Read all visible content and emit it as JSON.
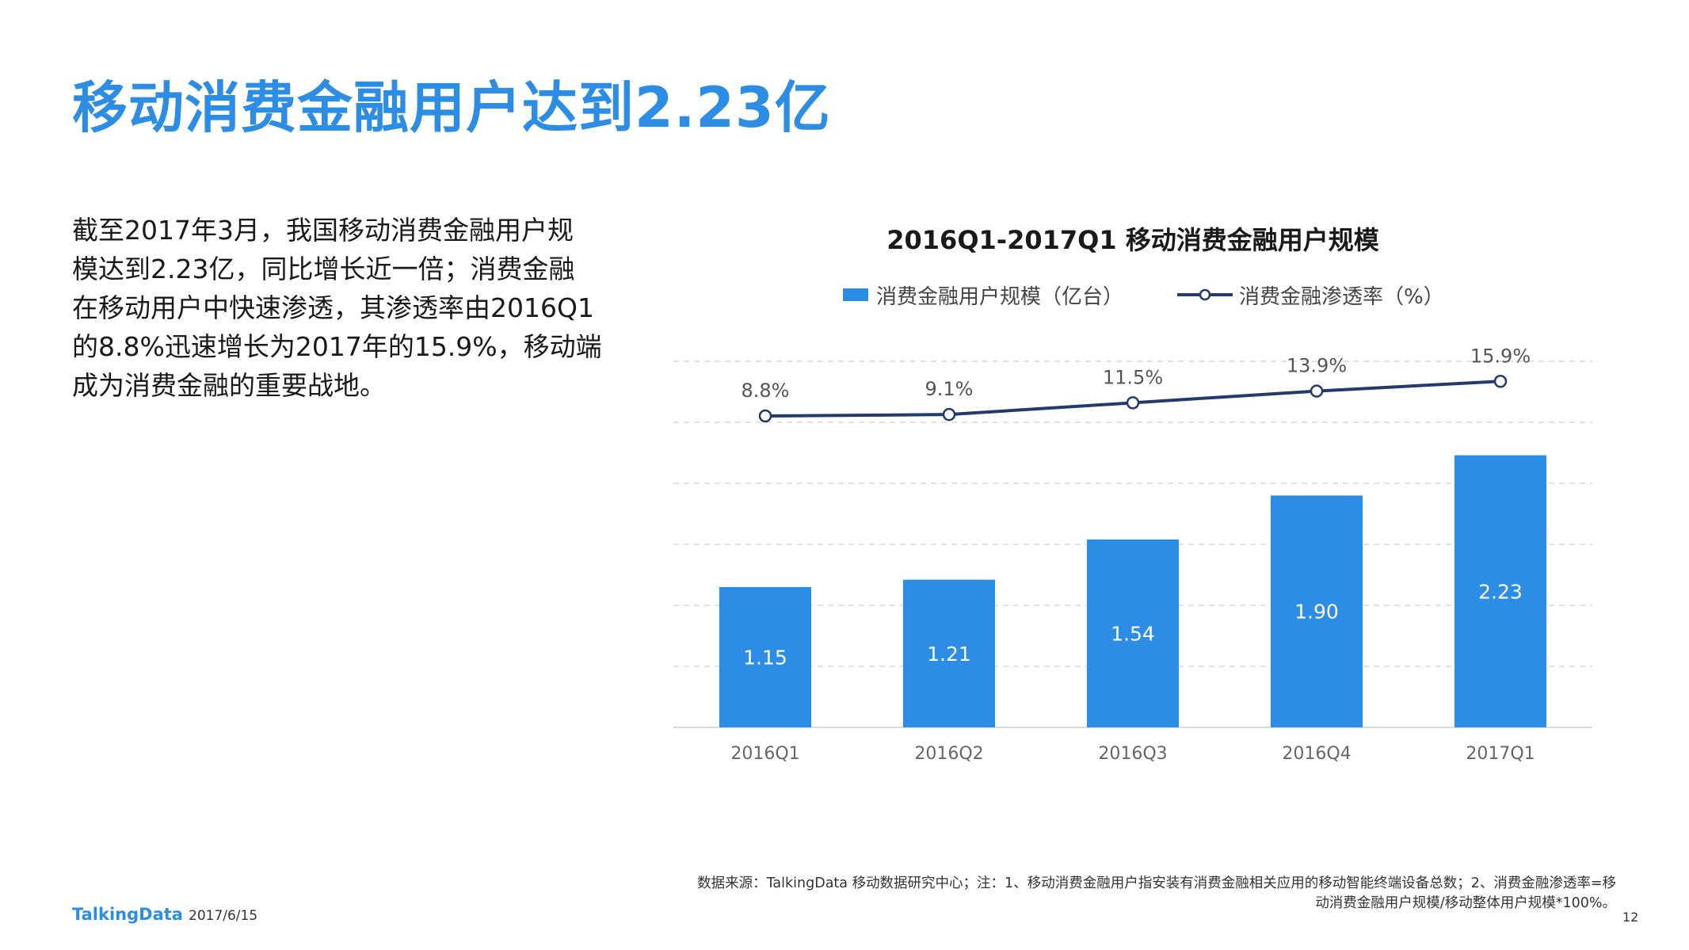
{
  "slide": {
    "title": "移动消费金融用户达到2.23亿",
    "body_lines": [
      "截至2017年3月，我国移动消费金融用户规",
      "模达到2.23亿，同比增长近一倍；消费金融",
      "在移动用户中快速渗透，其渗透率由2016Q1",
      "的8.8%迅速增长为2017年的15.9%，移动端",
      "成为消费金融的重要战地。"
    ],
    "footnote_lines": [
      "数据来源：TalkingData 移动数据研究中心；注：1、移动消费金融用户指安装有消费金融相关应用的移动智能终端设备总数；2、消费金融渗透率=移",
      "动消费金融用户规模/移动整体用户规模*100%。"
    ],
    "logo": "TalkingData",
    "date": "2017/6/15",
    "page_number": "12"
  },
  "colors": {
    "title": "#2d8de4",
    "bar": "#2d8de4",
    "line": "#233a6b",
    "grid": "#d9d9d9"
  },
  "chart_data": {
    "type": "bar",
    "title": "2016Q1-2017Q1  移动消费金融用户规模",
    "categories": [
      "2016Q1",
      "2016Q2",
      "2016Q3",
      "2016Q4",
      "2017Q1"
    ],
    "series": [
      {
        "name": "消费金融用户规模（亿台）",
        "type": "bar",
        "values": [
          1.15,
          1.21,
          1.54,
          1.9,
          2.23
        ],
        "labels": [
          "1.15",
          "1.21",
          "1.54",
          "1.90",
          "2.23"
        ]
      },
      {
        "name": "消费金融渗透率（%）",
        "type": "line",
        "values": [
          8.8,
          9.1,
          11.5,
          13.9,
          15.9
        ],
        "labels": [
          "8.8%",
          "9.1%",
          "11.5%",
          "13.9%",
          "15.9%"
        ]
      }
    ],
    "bar_axis_range": [
      0,
      3
    ],
    "line_axis_range": [
      -55,
      20
    ],
    "grid": true,
    "legend_position": "top"
  }
}
